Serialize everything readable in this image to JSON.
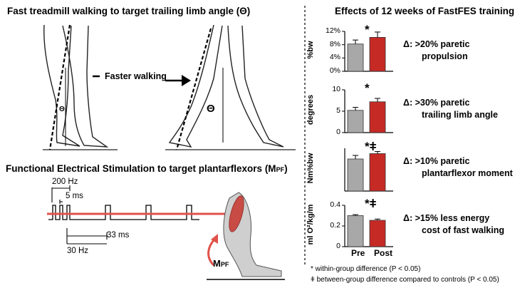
{
  "titles": {
    "treadmill": "Fast treadmill walking to target trailing limb angle (Θ)",
    "effects": "Effects of 12 weeks of FastFES training",
    "fes": "Functional Electrical Stimulation to target plantarflexors (M",
    "fes_sub": "PF",
    "fes_end": ")"
  },
  "legs": {
    "faster_walking": "Faster walking",
    "theta_small": "Θ",
    "theta_big": "Θ"
  },
  "stimulation": {
    "hz200": "200 Hz",
    "ms5": "5 ms",
    "ms33": "33 ms",
    "hz30": "30 Hz",
    "moment_label": "M",
    "moment_sub": "PF"
  },
  "chart_data": [
    {
      "type": "bar",
      "categories": [
        "Pre",
        "Post"
      ],
      "values": [
        8.2,
        10.2
      ],
      "errors": [
        1.2,
        1.6
      ],
      "ylabel": "%bw",
      "ylim": [
        0,
        12
      ],
      "ticks": [
        "0%",
        "4%",
        "8%",
        "12%"
      ],
      "significance": "*",
      "effect_delta": "Δ:",
      "effect_lines": [
        ">20% paretic",
        "propulsion"
      ]
    },
    {
      "type": "bar",
      "categories": [
        "Pre",
        "Post"
      ],
      "values": [
        5.2,
        7.2
      ],
      "errors": [
        0.7,
        0.8
      ],
      "ylabel": "degrees",
      "ylim": [
        0,
        10
      ],
      "ticks": [
        "0",
        "5",
        "10"
      ],
      "significance": "*",
      "effect_delta": "Δ:",
      "effect_lines": [
        ">30% paretic",
        "trailing limb angle"
      ]
    },
    {
      "type": "bar",
      "categories": [
        "Pre",
        "Post"
      ],
      "values": [
        0.9,
        1.05
      ],
      "errors": [
        0.1,
        0.06
      ],
      "ylabel": "Nm%bw",
      "ylim": [
        0,
        1.2
      ],
      "ticks": [],
      "significance": "*ǂ",
      "effect_delta": "Δ:",
      "effect_lines": [
        ">10% paretic",
        "plantarflexor moment"
      ]
    },
    {
      "type": "bar",
      "categories": [
        "Pre",
        "Post"
      ],
      "values": [
        0.3,
        0.255
      ],
      "errors": [
        0.01,
        0.012
      ],
      "ylabel": "ml O²/kg/m",
      "ylim": [
        0,
        0.4
      ],
      "ticks": [
        "0",
        "0.2",
        "0.4"
      ],
      "significance": "*ǂ",
      "effect_delta": "Δ:",
      "effect_lines": [
        ">15% less energy",
        "cost of fast walking"
      ]
    }
  ],
  "x_labels": [
    "Pre",
    "Post"
  ],
  "notes": {
    "within": "* within-group difference (P < 0.05)",
    "between": "ǂ between-group difference compared to controls (P < 0.05)"
  },
  "colors": {
    "pre": "#a8a8a8",
    "post": "#c62a25",
    "arrow": "#e0524a"
  }
}
